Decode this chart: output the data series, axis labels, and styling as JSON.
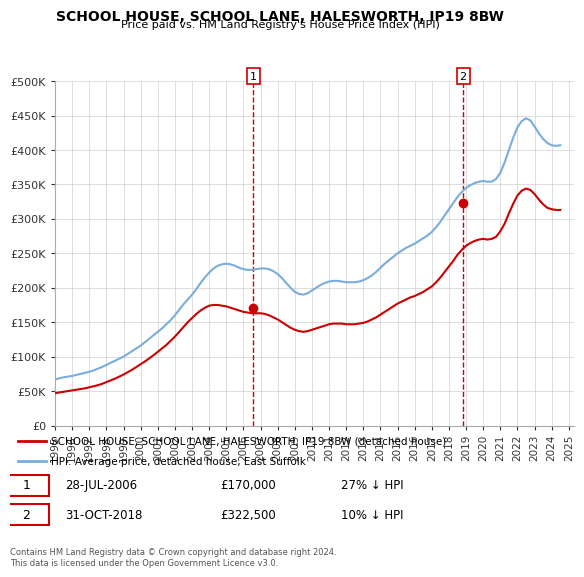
{
  "title": "SCHOOL HOUSE, SCHOOL LANE, HALESWORTH, IP19 8BW",
  "subtitle": "Price paid vs. HM Land Registry's House Price Index (HPI)",
  "legend_line1": "SCHOOL HOUSE, SCHOOL LANE, HALESWORTH, IP19 8BW (detached house)",
  "legend_line2": "HPI: Average price, detached house, East Suffolk",
  "footnote": "Contains HM Land Registry data © Crown copyright and database right 2024.\nThis data is licensed under the Open Government Licence v3.0.",
  "sale1_date": "28-JUL-2006",
  "sale1_price": "£170,000",
  "sale1_note": "27% ↓ HPI",
  "sale2_date": "31-OCT-2018",
  "sale2_price": "£322,500",
  "sale2_note": "10% ↓ HPI",
  "hpi_color": "#7aaddc",
  "price_color": "#cc0000",
  "vline_color": "#cc0000",
  "ylim": [
    0,
    500000
  ],
  "yticks": [
    0,
    50000,
    100000,
    150000,
    200000,
    250000,
    300000,
    350000,
    400000,
    450000,
    500000
  ],
  "ylabel_fmt": [
    "£0",
    "£50K",
    "£100K",
    "£150K",
    "£200K",
    "£250K",
    "£300K",
    "£350K",
    "£400K",
    "£450K",
    "£500K"
  ],
  "hpi_x": [
    1995.0,
    1995.25,
    1995.5,
    1995.75,
    1996.0,
    1996.25,
    1996.5,
    1996.75,
    1997.0,
    1997.25,
    1997.5,
    1997.75,
    1998.0,
    1998.25,
    1998.5,
    1998.75,
    1999.0,
    1999.25,
    1999.5,
    1999.75,
    2000.0,
    2000.25,
    2000.5,
    2000.75,
    2001.0,
    2001.25,
    2001.5,
    2001.75,
    2002.0,
    2002.25,
    2002.5,
    2002.75,
    2003.0,
    2003.25,
    2003.5,
    2003.75,
    2004.0,
    2004.25,
    2004.5,
    2004.75,
    2005.0,
    2005.25,
    2005.5,
    2005.75,
    2006.0,
    2006.25,
    2006.5,
    2006.75,
    2007.0,
    2007.25,
    2007.5,
    2007.75,
    2008.0,
    2008.25,
    2008.5,
    2008.75,
    2009.0,
    2009.25,
    2009.5,
    2009.75,
    2010.0,
    2010.25,
    2010.5,
    2010.75,
    2011.0,
    2011.25,
    2011.5,
    2011.75,
    2012.0,
    2012.25,
    2012.5,
    2012.75,
    2013.0,
    2013.25,
    2013.5,
    2013.75,
    2014.0,
    2014.25,
    2014.5,
    2014.75,
    2015.0,
    2015.25,
    2015.5,
    2015.75,
    2016.0,
    2016.25,
    2016.5,
    2016.75,
    2017.0,
    2017.25,
    2017.5,
    2017.75,
    2018.0,
    2018.25,
    2018.5,
    2018.75,
    2019.0,
    2019.25,
    2019.5,
    2019.75,
    2020.0,
    2020.25,
    2020.5,
    2020.75,
    2021.0,
    2021.25,
    2021.5,
    2021.75,
    2022.0,
    2022.25,
    2022.5,
    2022.75,
    2023.0,
    2023.25,
    2023.5,
    2023.75,
    2024.0,
    2024.25,
    2024.5
  ],
  "hpi_y": [
    67000,
    68500,
    70000,
    71000,
    72000,
    73500,
    75000,
    76500,
    78000,
    80000,
    82500,
    85000,
    88000,
    91000,
    94000,
    97000,
    100000,
    104000,
    108000,
    112000,
    116000,
    121000,
    126000,
    131000,
    136000,
    141000,
    147000,
    153000,
    160000,
    168000,
    176000,
    183000,
    190000,
    198000,
    207000,
    215000,
    222000,
    228000,
    232000,
    234000,
    235000,
    234000,
    232000,
    229000,
    227000,
    226000,
    226000,
    227000,
    228000,
    228000,
    227000,
    224000,
    220000,
    214000,
    207000,
    200000,
    194000,
    191000,
    190000,
    192000,
    196000,
    200000,
    204000,
    207000,
    209000,
    210000,
    210000,
    209000,
    208000,
    208000,
    208000,
    209000,
    211000,
    214000,
    218000,
    223000,
    229000,
    235000,
    240000,
    245000,
    250000,
    254000,
    258000,
    261000,
    264000,
    268000,
    272000,
    276000,
    281000,
    288000,
    296000,
    305000,
    314000,
    323000,
    332000,
    339000,
    345000,
    349000,
    352000,
    354000,
    355000,
    354000,
    354000,
    358000,
    367000,
    382000,
    400000,
    418000,
    433000,
    442000,
    446000,
    443000,
    434000,
    424000,
    416000,
    410000,
    407000,
    406000,
    407000
  ],
  "price_x": [
    1995.0,
    1995.25,
    1995.5,
    1995.75,
    1996.0,
    1996.25,
    1996.5,
    1996.75,
    1997.0,
    1997.25,
    1997.5,
    1997.75,
    1998.0,
    1998.25,
    1998.5,
    1998.75,
    1999.0,
    1999.25,
    1999.5,
    1999.75,
    2000.0,
    2000.25,
    2000.5,
    2000.75,
    2001.0,
    2001.25,
    2001.5,
    2001.75,
    2002.0,
    2002.25,
    2002.5,
    2002.75,
    2003.0,
    2003.25,
    2003.5,
    2003.75,
    2004.0,
    2004.25,
    2004.5,
    2004.75,
    2005.0,
    2005.25,
    2005.5,
    2005.75,
    2006.0,
    2006.25,
    2006.5,
    2006.75,
    2007.0,
    2007.25,
    2007.5,
    2007.75,
    2008.0,
    2008.25,
    2008.5,
    2008.75,
    2009.0,
    2009.25,
    2009.5,
    2009.75,
    2010.0,
    2010.25,
    2010.5,
    2010.75,
    2011.0,
    2011.25,
    2011.5,
    2011.75,
    2012.0,
    2012.25,
    2012.5,
    2012.75,
    2013.0,
    2013.25,
    2013.5,
    2013.75,
    2014.0,
    2014.25,
    2014.5,
    2014.75,
    2015.0,
    2015.25,
    2015.5,
    2015.75,
    2016.0,
    2016.25,
    2016.5,
    2016.75,
    2017.0,
    2017.25,
    2017.5,
    2017.75,
    2018.0,
    2018.25,
    2018.5,
    2018.75,
    2019.0,
    2019.25,
    2019.5,
    2019.75,
    2020.0,
    2020.25,
    2020.5,
    2020.75,
    2021.0,
    2021.25,
    2021.5,
    2021.75,
    2022.0,
    2022.25,
    2022.5,
    2022.75,
    2023.0,
    2023.25,
    2023.5,
    2023.75,
    2024.0,
    2024.25,
    2024.5
  ],
  "price_y": [
    47000,
    48000,
    49000,
    50000,
    51000,
    52000,
    53000,
    54000,
    55500,
    57000,
    58500,
    60500,
    63000,
    65500,
    68000,
    71000,
    74000,
    77500,
    81000,
    85000,
    89000,
    93000,
    97500,
    102000,
    107000,
    112000,
    117000,
    123000,
    129000,
    136000,
    143000,
    150000,
    156000,
    162000,
    167000,
    171000,
    174000,
    175000,
    175000,
    174000,
    173000,
    171000,
    169000,
    167000,
    165000,
    164000,
    163000,
    163000,
    163000,
    162000,
    160000,
    157000,
    154000,
    150000,
    146000,
    142000,
    139000,
    137000,
    136000,
    137000,
    139000,
    141000,
    143000,
    145000,
    147000,
    148000,
    148000,
    148000,
    147000,
    147000,
    147000,
    148000,
    149000,
    151000,
    154000,
    157000,
    161000,
    165000,
    169000,
    173000,
    177000,
    180000,
    183000,
    186000,
    188000,
    191000,
    194000,
    198000,
    202000,
    208000,
    215000,
    223000,
    231000,
    239000,
    248000,
    255000,
    261000,
    265000,
    268000,
    270000,
    271000,
    270000,
    271000,
    274000,
    282000,
    293000,
    308000,
    322000,
    334000,
    341000,
    344000,
    342000,
    336000,
    328000,
    321000,
    316000,
    314000,
    313000,
    313000
  ],
  "sale1_x": 2006.58,
  "sale1_y": 170000,
  "sale2_x": 2018.83,
  "sale2_y": 322500,
  "xtick_years": [
    1995,
    1996,
    1997,
    1998,
    1999,
    2000,
    2001,
    2002,
    2003,
    2004,
    2005,
    2006,
    2007,
    2008,
    2009,
    2010,
    2011,
    2012,
    2013,
    2014,
    2015,
    2016,
    2017,
    2018,
    2019,
    2020,
    2021,
    2022,
    2023,
    2024,
    2025
  ],
  "background_color": "#ffffff",
  "grid_color": "#d0d0d0"
}
